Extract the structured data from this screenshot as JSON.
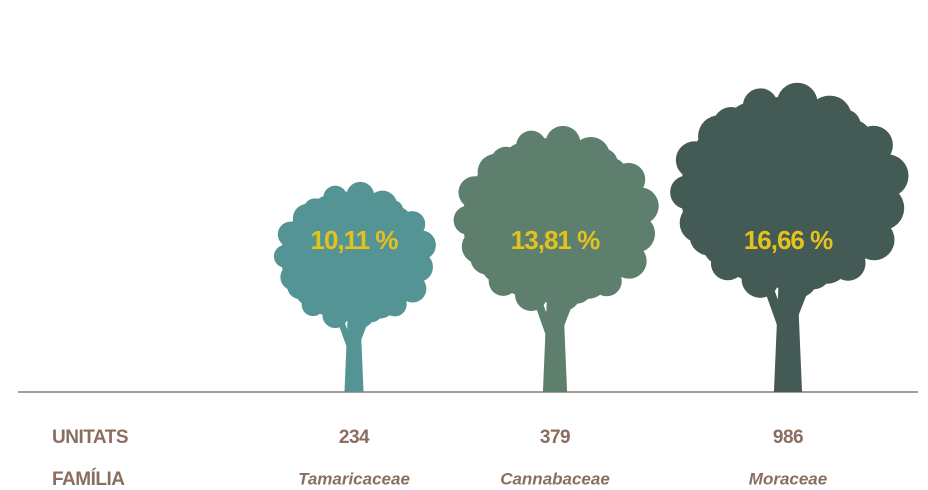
{
  "chart_data": {
    "type": "tree",
    "row_labels": [
      "UNITATS",
      "FAMÍLIA"
    ],
    "categories": [
      "Tamaricaceae",
      "Cannabaceae",
      "Moraceae"
    ],
    "units": [
      234,
      379,
      986
    ],
    "values": [
      10.11,
      13.81,
      16.66
    ],
    "value_labels": [
      "10,11 %",
      "13,81 %",
      "16,66 %"
    ],
    "colors": [
      "#559494",
      "#5e7f6d",
      "#445a55"
    ],
    "label_color": "#e3c21c"
  }
}
